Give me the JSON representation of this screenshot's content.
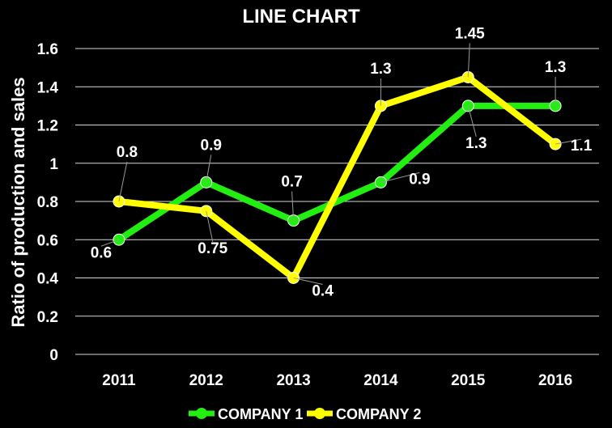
{
  "chart_data": {
    "type": "line",
    "title": "LINE CHART",
    "xlabel": "",
    "ylabel": "Ratio of production and sales",
    "categories": [
      "2011",
      "2012",
      "2013",
      "2014",
      "2015",
      "2016"
    ],
    "ylim": [
      0,
      1.6
    ],
    "yticks": [
      "0",
      "0.2",
      "0.4",
      "0.6",
      "0.8",
      "1",
      "1.2",
      "1.4",
      "1.6"
    ],
    "grid": true,
    "legend": "bottom",
    "series": [
      {
        "name": "COMPANY 1",
        "color": "#22ee11",
        "values": [
          0.6,
          0.9,
          0.7,
          0.9,
          1.3,
          1.3
        ],
        "labels": [
          "0.6",
          "0.9",
          "0.7",
          "0.9",
          "1.3",
          "1.3"
        ]
      },
      {
        "name": "COMPANY 2",
        "color": "#ffff00",
        "values": [
          0.8,
          0.75,
          0.4,
          1.3,
          1.45,
          1.1
        ],
        "labels": [
          "0.8",
          "0.75",
          "0.4",
          "1.3",
          "1.45",
          "1.1"
        ]
      }
    ]
  }
}
